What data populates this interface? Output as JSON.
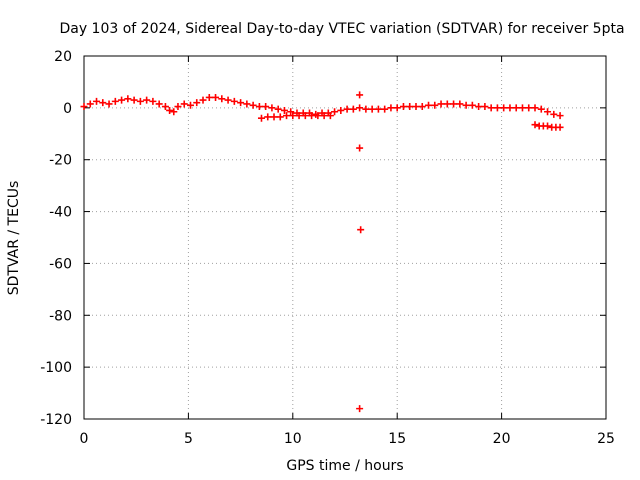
{
  "chart_data": {
    "type": "scatter",
    "title": "Day 103 of 2024, Sidereal Day-to-day VTEC variation (SDTVAR) for receiver 5pta",
    "xlabel": "GPS time / hours",
    "ylabel": "SDTVAR / TECUs",
    "xlim": [
      0,
      25
    ],
    "ylim": [
      -120,
      20
    ],
    "xticks": [
      "0",
      "5",
      "10",
      "15",
      "20",
      "25"
    ],
    "yticks": [
      "20",
      "0",
      "-20",
      "-40",
      "-60",
      "-80",
      "-100",
      "-120"
    ],
    "grid": true,
    "marker": "plus",
    "series": [
      {
        "name": "SDTVAR",
        "color": "#ff0000",
        "x": [
          0.0,
          0.3,
          0.6,
          0.9,
          1.2,
          1.5,
          1.8,
          2.1,
          2.4,
          2.7,
          3.0,
          3.3,
          3.6,
          3.9,
          4.1,
          4.3,
          4.5,
          4.8,
          5.1,
          5.4,
          5.7,
          6.0,
          6.3,
          6.6,
          6.9,
          7.2,
          7.5,
          7.8,
          8.1,
          8.4,
          8.7,
          9.0,
          9.3,
          9.6,
          9.9,
          10.2,
          10.5,
          10.8,
          11.1,
          11.4,
          11.7,
          12.0,
          12.3,
          12.6,
          12.9,
          13.2,
          13.5,
          13.8,
          14.1,
          14.4,
          14.7,
          15.0,
          15.3,
          15.6,
          15.9,
          16.2,
          16.5,
          16.8,
          17.1,
          17.4,
          17.7,
          18.0,
          18.3,
          18.6,
          18.9,
          19.2,
          19.5,
          19.8,
          20.1,
          20.4,
          20.7,
          21.0,
          21.3,
          21.6,
          21.9,
          22.2,
          22.5,
          22.8,
          8.5,
          8.8,
          9.1,
          9.4,
          9.7,
          10.0,
          10.3,
          10.6,
          10.9,
          11.2,
          11.5,
          11.8,
          21.6,
          21.8,
          22.0,
          22.2,
          22.4,
          22.6,
          22.8,
          13.2,
          13.2,
          13.25,
          13.2
        ],
        "y": [
          0.5,
          1.5,
          2.5,
          2.0,
          1.5,
          2.5,
          3.0,
          3.5,
          3.0,
          2.5,
          3.0,
          2.5,
          1.5,
          0.5,
          -1.0,
          -1.5,
          0.5,
          1.5,
          1.0,
          2.0,
          3.0,
          4.0,
          4.0,
          3.5,
          3.0,
          2.5,
          2.0,
          1.5,
          1.0,
          0.5,
          0.5,
          0.0,
          -0.5,
          -1.0,
          -1.5,
          -2.0,
          -2.0,
          -2.0,
          -2.5,
          -2.0,
          -2.0,
          -1.5,
          -1.0,
          -0.5,
          -0.5,
          0.0,
          -0.5,
          -0.5,
          -0.5,
          -0.5,
          0.0,
          0.0,
          0.5,
          0.5,
          0.5,
          0.5,
          1.0,
          1.0,
          1.5,
          1.5,
          1.5,
          1.5,
          1.0,
          1.0,
          0.5,
          0.5,
          0.0,
          0.0,
          0.0,
          0.0,
          0.0,
          0.0,
          0.0,
          0.0,
          -0.5,
          -1.5,
          -2.5,
          -3.0,
          -4.0,
          -3.5,
          -3.5,
          -3.5,
          -3.0,
          -3.0,
          -3.0,
          -3.0,
          -3.0,
          -3.0,
          -3.0,
          -3.0,
          -6.5,
          -7.0,
          -7.0,
          -7.0,
          -7.5,
          -7.5,
          -7.5,
          5.0,
          -15.5,
          -47.0,
          -116.0
        ]
      }
    ]
  }
}
